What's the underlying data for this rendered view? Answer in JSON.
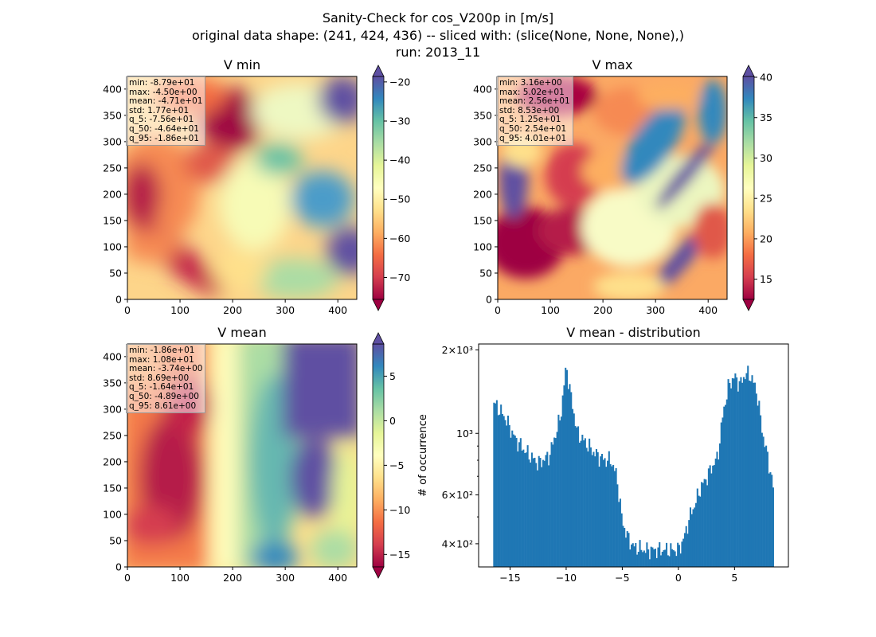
{
  "suptitle": {
    "line1": "Sanity-Check for cos_V200p in [m/s]",
    "line2": "original data shape: (241, 424, 436) -- sliced with: (slice(None, None, None),)",
    "line3": "run: 2013_11"
  },
  "panels": {
    "vmin": {
      "title": "V min",
      "stats": [
        "min: -8.79e+01",
        "max: -4.50e+00",
        "mean: -4.71e+01",
        "std: 1.77e+01",
        "q_5: -7.56e+01",
        "q_50: -4.64e+01",
        "q_95: -1.86e+01"
      ]
    },
    "vmax": {
      "title": "V max",
      "stats": [
        "min: 3.16e+00",
        "max: 5.02e+01",
        "mean: 2.56e+01",
        "std: 8.53e+00",
        "q_5: 1.25e+01",
        "q_50: 2.54e+01",
        "q_95: 4.01e+01"
      ]
    },
    "vmean": {
      "title": "V mean",
      "stats": [
        "min: -1.86e+01",
        "max: 1.08e+01",
        "mean: -3.74e+00",
        "std: 8.69e+00",
        "q_5: -1.64e+01",
        "q_50: -4.89e+00",
        "q_95: 8.61e+00"
      ]
    },
    "hist": {
      "title": "V mean - distribution",
      "ylabel": "# of occurrence"
    }
  },
  "chart_data": [
    {
      "type": "heatmap",
      "title": "V min",
      "xlim": [
        0,
        436
      ],
      "ylim": [
        0,
        424
      ],
      "xticks": [
        "0",
        "100",
        "200",
        "300",
        "400"
      ],
      "yticks": [
        "0",
        "50",
        "100",
        "150",
        "200",
        "250",
        "300",
        "350",
        "400"
      ],
      "colormap": "Spectral",
      "colorbar": {
        "vmin": -75.6,
        "vmax": -18.6,
        "ticks": [
          -20,
          -30,
          -40,
          -50,
          -60,
          -70
        ],
        "tick_labels": [
          "−20",
          "−30",
          "−40",
          "−50",
          "−60",
          "−70"
        ],
        "extend": "both"
      }
    },
    {
      "type": "heatmap",
      "title": "V max",
      "xlim": [
        0,
        436
      ],
      "ylim": [
        0,
        424
      ],
      "xticks": [
        "0",
        "100",
        "200",
        "300",
        "400"
      ],
      "yticks": [
        "0",
        "50",
        "100",
        "150",
        "200",
        "250",
        "300",
        "350",
        "400"
      ],
      "colormap": "Spectral",
      "colorbar": {
        "vmin": 12.5,
        "vmax": 40.1,
        "ticks": [
          40,
          35,
          30,
          25,
          20,
          15
        ],
        "tick_labels": [
          "40",
          "35",
          "30",
          "25",
          "20",
          "15"
        ],
        "extend": "both"
      }
    },
    {
      "type": "heatmap",
      "title": "V mean",
      "xlim": [
        0,
        436
      ],
      "ylim": [
        0,
        424
      ],
      "xticks": [
        "0",
        "100",
        "200",
        "300",
        "400"
      ],
      "yticks": [
        "0",
        "50",
        "100",
        "150",
        "200",
        "250",
        "300",
        "350",
        "400"
      ],
      "colormap": "Spectral",
      "colorbar": {
        "vmin": -16.4,
        "vmax": 8.61,
        "ticks": [
          5,
          0,
          -5,
          -10,
          -15
        ],
        "tick_labels": [
          "5",
          "0",
          "−5",
          "−10",
          "−15"
        ],
        "extend": "both"
      }
    },
    {
      "type": "bar",
      "title": "V mean - distribution",
      "ylabel": "# of occurrence",
      "yscale": "log",
      "xlim": [
        -17.8,
        9.8
      ],
      "ylim": [
        330,
        2100
      ],
      "xticks": [
        -15,
        -10,
        -5,
        0,
        5
      ],
      "xtick_labels": [
        "−15",
        "−10",
        "−5",
        "0",
        "5"
      ],
      "yticks_major": [
        400,
        600,
        1000,
        2000
      ],
      "ytick_labels": [
        "4×10²",
        "6×10²",
        "10³",
        "2×10³"
      ],
      "bar_color": "#1f77b4",
      "bin_range": [
        -16.5,
        8.5
      ],
      "x": [
        -16.5,
        -15.5,
        -14.5,
        -13.5,
        -12.5,
        -11.5,
        -10.5,
        -10.0,
        -9.5,
        -9.0,
        -8.5,
        -8.0,
        -7.5,
        -7.0,
        -6.5,
        -6.0,
        -5.5,
        -5.0,
        -4.5,
        -4.0,
        -3.0,
        -2.0,
        -1.0,
        0.0,
        0.5,
        1.0,
        1.5,
        2.0,
        2.5,
        3.0,
        3.5,
        4.0,
        4.5,
        5.0,
        5.5,
        6.0,
        6.5,
        7.0,
        7.5,
        8.0,
        8.5
      ],
      "y": [
        1300,
        1150,
        950,
        850,
        780,
        830,
        1150,
        1750,
        1300,
        1000,
        950,
        900,
        850,
        820,
        800,
        800,
        700,
        480,
        420,
        390,
        380,
        380,
        380,
        380,
        420,
        500,
        560,
        640,
        690,
        760,
        820,
        1200,
        1500,
        1600,
        1500,
        1650,
        1600,
        1400,
        1000,
        800,
        620
      ]
    }
  ]
}
